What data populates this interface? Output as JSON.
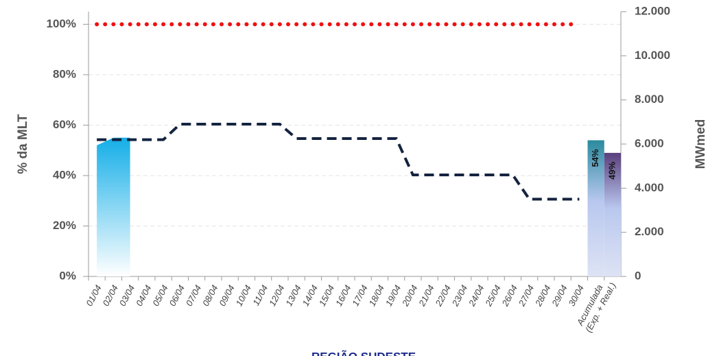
{
  "chart_data": {
    "type": "combo",
    "title": "REGIÃO SUDESTE",
    "ylabel": "% da MLT",
    "y2label": "MWmed",
    "categories": [
      "01/04",
      "02/04",
      "03/04",
      "04/04",
      "05/04",
      "06/04",
      "07/04",
      "08/04",
      "09/04",
      "10/04",
      "11/04",
      "12/04",
      "13/04",
      "14/04",
      "15/04",
      "16/04",
      "17/04",
      "18/04",
      "19/04",
      "20/04",
      "21/04",
      "22/04",
      "23/04",
      "24/04",
      "25/04",
      "26/04",
      "27/04",
      "28/04",
      "29/04",
      "30/04",
      "Acumulada (Exp. + Real.)"
    ],
    "ylim": [
      0,
      105
    ],
    "yticks": [
      {
        "value": 0,
        "label": "0%"
      },
      {
        "value": 20,
        "label": "20%"
      },
      {
        "value": 40,
        "label": "40%"
      },
      {
        "value": 60,
        "label": "60%"
      },
      {
        "value": 80,
        "label": "80%"
      },
      {
        "value": 100,
        "label": "100%"
      }
    ],
    "y2lim": [
      0,
      12000
    ],
    "y2ticks": [
      0,
      {
        "value": 2000,
        "label": "2.000"
      },
      {
        "value": 4000,
        "label": "4.000"
      },
      {
        "value": 6000,
        "label": "6.000"
      },
      {
        "value": 8000,
        "label": "8.000"
      },
      {
        "value": 10000,
        "label": "10.000"
      },
      {
        "value": 12000,
        "label": "12.000"
      }
    ],
    "grid": true,
    "series": [
      {
        "kind": "area",
        "color": "#14aee8",
        "values": [
          52,
          55,
          55,
          null,
          null,
          null,
          null,
          null,
          null,
          null,
          null,
          null,
          null,
          null,
          null,
          null,
          null,
          null,
          null,
          null,
          null,
          null,
          null,
          null,
          null,
          null,
          null,
          null,
          null,
          null,
          null
        ]
      },
      {
        "kind": "dotted",
        "color": "#ee1111",
        "values": [
          100,
          100,
          100,
          100,
          100,
          100,
          100,
          100,
          100,
          100,
          100,
          100,
          100,
          100,
          100,
          100,
          100,
          100,
          100,
          100,
          100,
          100,
          100,
          100,
          100,
          100,
          100,
          100,
          100,
          100,
          null
        ]
      },
      {
        "kind": "dashed",
        "color": "#14233f",
        "axis": "y2",
        "values": [
          6200,
          6200,
          6200,
          6200,
          6200,
          6900,
          6900,
          6900,
          6900,
          6900,
          6900,
          6900,
          6250,
          6250,
          6250,
          6250,
          6250,
          6250,
          6250,
          4600,
          4600,
          4600,
          4600,
          4600,
          4600,
          4600,
          3500,
          3500,
          3500,
          3500,
          null
        ]
      },
      {
        "kind": "bar",
        "color": "#2a8a9e",
        "values": [
          null,
          null,
          null,
          null,
          null,
          null,
          null,
          null,
          null,
          null,
          null,
          null,
          null,
          null,
          null,
          null,
          null,
          null,
          null,
          null,
          null,
          null,
          null,
          null,
          null,
          null,
          null,
          null,
          null,
          null,
          54
        ],
        "value_labels": [
          null,
          null,
          null,
          null,
          null,
          null,
          null,
          null,
          null,
          null,
          null,
          null,
          null,
          null,
          null,
          null,
          null,
          null,
          null,
          null,
          null,
          null,
          null,
          null,
          null,
          null,
          null,
          null,
          null,
          null,
          "54%"
        ]
      },
      {
        "kind": "bar",
        "color": "#5a3f7c",
        "values": [
          null,
          null,
          null,
          null,
          null,
          null,
          null,
          null,
          null,
          null,
          null,
          null,
          null,
          null,
          null,
          null,
          null,
          null,
          null,
          null,
          null,
          null,
          null,
          null,
          null,
          null,
          null,
          null,
          null,
          null,
          49
        ],
        "value_labels": [
          null,
          null,
          null,
          null,
          null,
          null,
          null,
          null,
          null,
          null,
          null,
          null,
          null,
          null,
          null,
          null,
          null,
          null,
          null,
          null,
          null,
          null,
          null,
          null,
          null,
          null,
          null,
          null,
          null,
          null,
          "49%"
        ]
      }
    ]
  }
}
